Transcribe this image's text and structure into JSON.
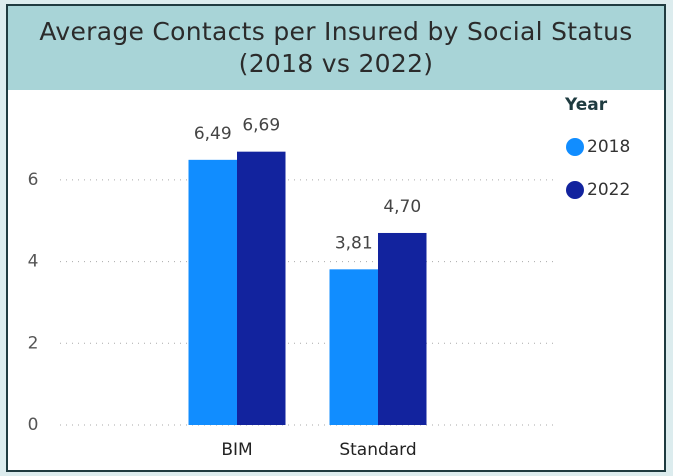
{
  "chart_data": {
    "type": "bar",
    "title": "Average Contacts per Insured by Social Status (2018 vs 2022)",
    "categories": [
      "BIM",
      "Standard"
    ],
    "series": [
      {
        "name": "2018",
        "color": "#118dff",
        "values": [
          6.49,
          3.81
        ],
        "value_labels": [
          "6,49",
          "3,81"
        ]
      },
      {
        "name": "2022",
        "color": "#12239e",
        "values": [
          6.69,
          4.7
        ],
        "value_labels": [
          "6,69",
          "4,70"
        ]
      }
    ],
    "legend_title": "Year",
    "ylim": [
      0,
      7
    ],
    "yticks": [
      0,
      2,
      4,
      6
    ],
    "grid": true,
    "legend": "right"
  }
}
